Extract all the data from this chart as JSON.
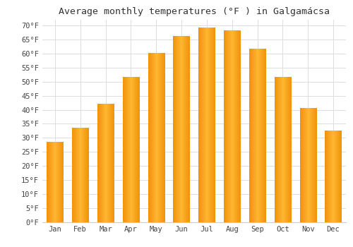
{
  "title": "Average monthly temperatures (°F ) in Galgamácsa",
  "months": [
    "Jan",
    "Feb",
    "Mar",
    "Apr",
    "May",
    "Jun",
    "Jul",
    "Aug",
    "Sep",
    "Oct",
    "Nov",
    "Dec"
  ],
  "values": [
    28.5,
    33.5,
    42.0,
    51.5,
    60.0,
    66.0,
    69.0,
    68.0,
    61.5,
    51.5,
    40.5,
    32.5
  ],
  "bar_color_center": "#FFB732",
  "bar_color_edge": "#F0920A",
  "background_color": "#ffffff",
  "grid_color": "#dddddd",
  "ylim": [
    0,
    72
  ],
  "title_fontsize": 9.5,
  "tick_fontsize": 7.5,
  "font_family": "monospace"
}
